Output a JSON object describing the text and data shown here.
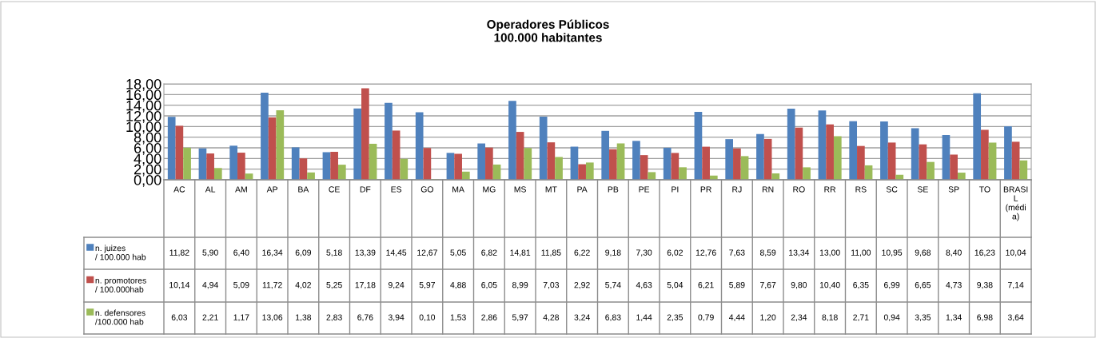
{
  "chart_data": {
    "type": "bar",
    "title": "Operadores Públicos\n100.000 habitantes",
    "categories": [
      "AC",
      "AL",
      "AM",
      "AP",
      "BA",
      "CE",
      "DF",
      "ES",
      "GO",
      "MA",
      "MG",
      "MS",
      "MT",
      "PA",
      "PB",
      "PE",
      "PI",
      "PR",
      "RJ",
      "RN",
      "RO",
      "RR",
      "RS",
      "SC",
      "SE",
      "SP",
      "TO",
      "BRASIL (média)"
    ],
    "series": [
      {
        "name": "n. juizes\n/ 100.000 hab",
        "color": "#4f81bd",
        "values": [
          11.82,
          5.9,
          6.4,
          16.34,
          6.09,
          5.18,
          13.39,
          14.45,
          12.67,
          5.05,
          6.82,
          14.81,
          11.85,
          6.22,
          9.18,
          7.3,
          6.02,
          12.76,
          7.63,
          8.59,
          13.34,
          13.0,
          11.0,
          10.95,
          9.68,
          8.4,
          16.23,
          10.04
        ],
        "value_labels": [
          "11,82",
          "5,90",
          "6,40",
          "16,34",
          "6,09",
          "5,18",
          "13,39",
          "14,45",
          "12,67",
          "5,05",
          "6,82",
          "14,81",
          "11,85",
          "6,22",
          "9,18",
          "7,30",
          "6,02",
          "12,76",
          "7,63",
          "8,59",
          "13,34",
          "13,00",
          "11,00",
          "10,95",
          "9,68",
          "8,40",
          "16,23",
          "10,04"
        ]
      },
      {
        "name": "n. promotores\n/ 100.000hab",
        "color": "#c0504d",
        "values": [
          10.14,
          4.94,
          5.09,
          11.72,
          4.02,
          5.25,
          17.18,
          9.24,
          5.97,
          4.88,
          6.05,
          8.99,
          7.03,
          2.92,
          5.74,
          4.63,
          5.04,
          6.21,
          5.89,
          7.67,
          9.8,
          10.4,
          6.35,
          6.99,
          6.65,
          4.73,
          9.38,
          7.14
        ],
        "value_labels": [
          "10,14",
          "4,94",
          "5,09",
          "11,72",
          "4,02",
          "5,25",
          "17,18",
          "9,24",
          "5,97",
          "4,88",
          "6,05",
          "8,99",
          "7,03",
          "2,92",
          "5,74",
          "4,63",
          "5,04",
          "6,21",
          "5,89",
          "7,67",
          "9,80",
          "10,40",
          "6,35",
          "6,99",
          "6,65",
          "4,73",
          "9,38",
          "7,14"
        ]
      },
      {
        "name": "n. defensores\n/100.000 hab",
        "color": "#9bbb59",
        "values": [
          6.03,
          2.21,
          1.17,
          13.06,
          1.38,
          2.83,
          6.76,
          3.94,
          0.1,
          1.53,
          2.86,
          5.97,
          4.28,
          3.24,
          6.83,
          1.44,
          2.35,
          0.79,
          4.44,
          1.2,
          2.34,
          8.18,
          2.71,
          0.94,
          3.35,
          1.34,
          6.98,
          3.64
        ],
        "value_labels": [
          "6,03",
          "2,21",
          "1,17",
          "13,06",
          "1,38",
          "2,83",
          "6,76",
          "3,94",
          "0,10",
          "1,53",
          "2,86",
          "5,97",
          "4,28",
          "3,24",
          "6,83",
          "1,44",
          "2,35",
          "0,79",
          "4,44",
          "1,20",
          "2,34",
          "8,18",
          "2,71",
          "0,94",
          "3,35",
          "1,34",
          "6,98",
          "3,64"
        ]
      }
    ],
    "ylim": [
      0,
      18
    ],
    "yticks": [
      {
        "value": 0,
        "label": "0,00"
      },
      {
        "value": 2,
        "label": "2,00"
      },
      {
        "value": 4,
        "label": "4,00"
      },
      {
        "value": 6,
        "label": "6,00"
      },
      {
        "value": 8,
        "label": "8,00"
      },
      {
        "value": 10,
        "label": "10,00"
      },
      {
        "value": 12,
        "label": "12,00"
      },
      {
        "value": 14,
        "label": "14,00"
      },
      {
        "value": 16,
        "label": "16,00"
      },
      {
        "value": 18,
        "label": "18,00"
      }
    ],
    "grid": "y",
    "legend": "bottom left"
  }
}
